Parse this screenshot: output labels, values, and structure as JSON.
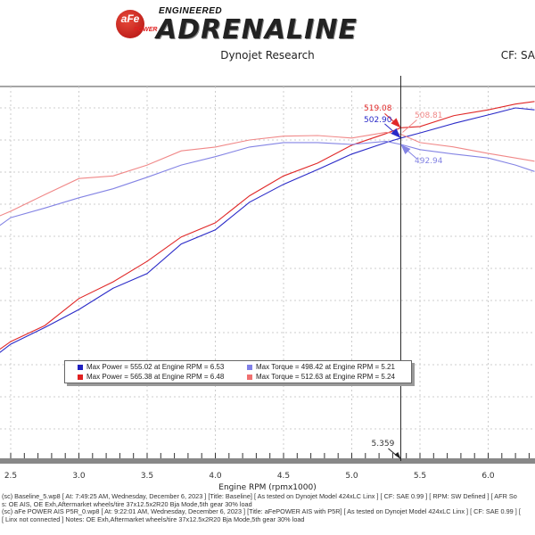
{
  "logo": {
    "badge_text": "aFe",
    "badge_sub": "POWER",
    "line1": "ENGINEERED",
    "line2": "ADRENALINE"
  },
  "header": {
    "subtitle": "Dynojet Research",
    "cf_label": "CF: SA"
  },
  "chart_data": {
    "type": "line",
    "xlabel": "Engine RPM (rpmx1000)",
    "ylabel": "",
    "xlim": [
      2.42,
      6.34
    ],
    "ylim": [
      0,
      583
    ],
    "x_ticks": [
      "2.5",
      "3.0",
      "3.5",
      "4.0",
      "4.5",
      "5.0",
      "5.5",
      "6.0"
    ],
    "grid": true,
    "x": [
      2.42,
      2.5,
      2.75,
      3.0,
      3.25,
      3.5,
      3.75,
      4.0,
      4.25,
      4.5,
      4.75,
      5.0,
      5.25,
      5.36,
      5.5,
      5.75,
      6.0,
      6.2,
      6.34
    ],
    "series": [
      {
        "key": "power_p5r",
        "color": "#e02828",
        "values": [
          174,
          186,
          211,
          253,
          279,
          311,
          349,
          371,
          413,
          444,
          464,
          492,
          510,
          519,
          521,
          538,
          547,
          556,
          560
        ]
      },
      {
        "key": "power_baseline",
        "color": "#2a2ac8",
        "values": [
          169,
          182,
          208,
          236,
          269,
          292,
          338,
          360,
          403,
          431,
          454,
          478,
          496,
          503,
          511,
          526,
          539,
          550,
          547
        ]
      },
      {
        "key": "torque_p5r",
        "color": "#f08888",
        "values": [
          382,
          389,
          415,
          440,
          444,
          461,
          483,
          489,
          500,
          506,
          507,
          503,
          512,
          509,
          496,
          489,
          479,
          472,
          467
        ]
      },
      {
        "key": "torque_baseline",
        "color": "#8484e4",
        "values": [
          367,
          379,
          394,
          410,
          424,
          442,
          461,
          474,
          489,
          496,
          496,
          493,
          498,
          493,
          485,
          478,
          472,
          461,
          451
        ]
      }
    ],
    "cursor": {
      "x": 5.359,
      "label": "5.359"
    },
    "annotations": [
      {
        "label": "519.08",
        "series": "power_p5r",
        "color": "#e02828"
      },
      {
        "label": "502.90",
        "series": "power_baseline",
        "color": "#2a2ac8"
      },
      {
        "label": "508.81",
        "series": "torque_p5r",
        "color": "#f08888"
      },
      {
        "label": "492.94",
        "series": "torque_baseline",
        "color": "#8484e4"
      }
    ],
    "legend": {
      "placement": "bottom-center",
      "entries": [
        {
          "text": "Max Power = 555.02 at Engine RPM = 6.53",
          "color": "#2020c0"
        },
        {
          "text": "Max Torque = 498.42 at Engine RPM = 5.21",
          "color": "#8080e8"
        },
        {
          "text": "Max Power = 565.38 at Engine RPM = 6.48",
          "color": "#e02020"
        },
        {
          "text": "Max Torque = 512.63 at Engine RPM = 5.24",
          "color": "#f07070"
        }
      ]
    }
  },
  "footer": {
    "lines": [
      "(sc) Baseline_5.wp8 [ At: 7:49:25 AM, Wednesday, December 6, 2023 ] [Title: Baseline]  [ As tested on Dynojet Model 424xLC Linx ] [ CF: SAE 0.99 ] [ RPM: SW Defined ] [ AFR So",
      "s: OE AIS, OE Exh,Aftermarket wheels/tire 37x12.5x2R20 Bja Mode,5th gear 30% load",
      "(sc) aFe POWER AIS P5R_0.wp8 [ At: 9:22:01 AM, Wednesday, December 6, 2023 ] [Title: aFePOWER AIS with P5R]  [ As tested on Dynojet Model 424xLC Linx ] [ CF: SAE 0.99 ] [",
      "[ Linx not connected ] Notes: OE Exh,Aftermarket wheels/tire 37x12.5x2R20 Bja Mode,5th gear 30% load"
    ]
  }
}
